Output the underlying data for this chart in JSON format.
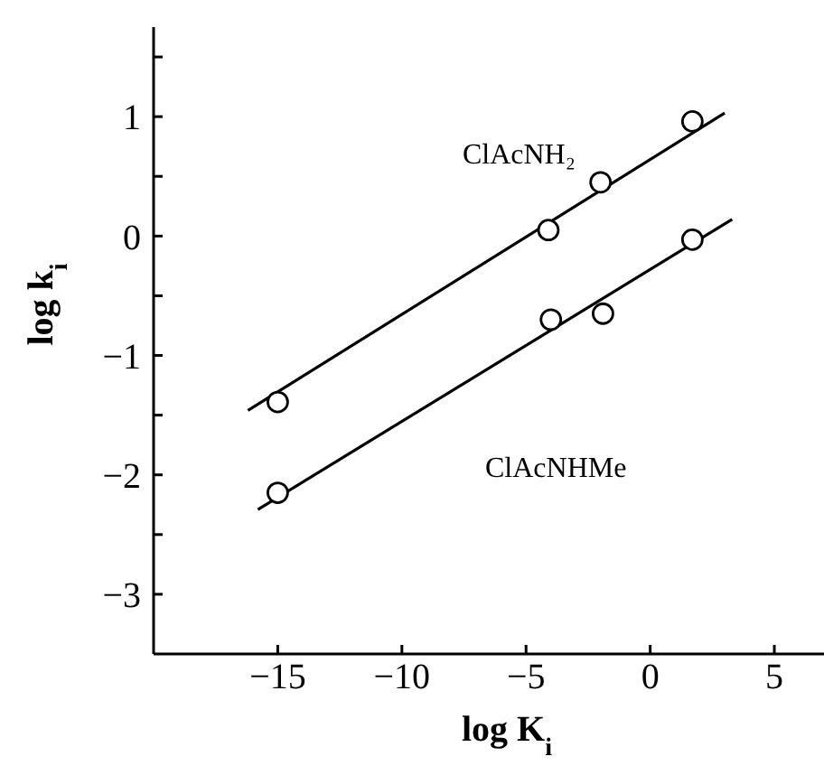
{
  "chart_data": {
    "type": "scatter",
    "xlabel": "log K$_{i}$",
    "ylabel": "log k$_{i}$",
    "xlim": [
      -20,
      7
    ],
    "xticks": [
      -15,
      -10,
      -5,
      0,
      5
    ],
    "ylim": [
      -3.5,
      1.75
    ],
    "yticks": [
      {
        "value": 1.5,
        "label": null
      },
      1,
      {
        "value": 0.5,
        "label": null
      },
      0,
      {
        "value": -0.5,
        "label": null
      },
      -1,
      {
        "value": -1.5,
        "label": null
      },
      -2,
      {
        "value": -2.5,
        "label": null
      },
      -3
    ],
    "series": [
      {
        "color": "#000000",
        "marker": "circle",
        "x": [
          -15,
          -4.1,
          -2.0,
          1.7
        ],
        "values": [
          -1.39,
          0.05,
          0.45,
          0.96
        ]
      },
      {
        "color": "#000000",
        "marker": "circle",
        "x": [
          -15,
          -4.0,
          -1.9,
          1.7
        ],
        "values": [
          -2.15,
          -0.7,
          -0.65,
          -0.03
        ]
      },
      {
        "type": "line",
        "marker": "none",
        "color": "#000000",
        "x": [
          -16.2,
          3.0
        ],
        "values": [
          -1.46,
          1.03
        ]
      },
      {
        "type": "line",
        "marker": "none",
        "color": "#000000",
        "x": [
          -15.8,
          3.3
        ],
        "values": [
          -2.29,
          0.14
        ]
      }
    ],
    "annotations": [
      "ClAcNH₂",
      "ClAcNHMe"
    ]
  }
}
